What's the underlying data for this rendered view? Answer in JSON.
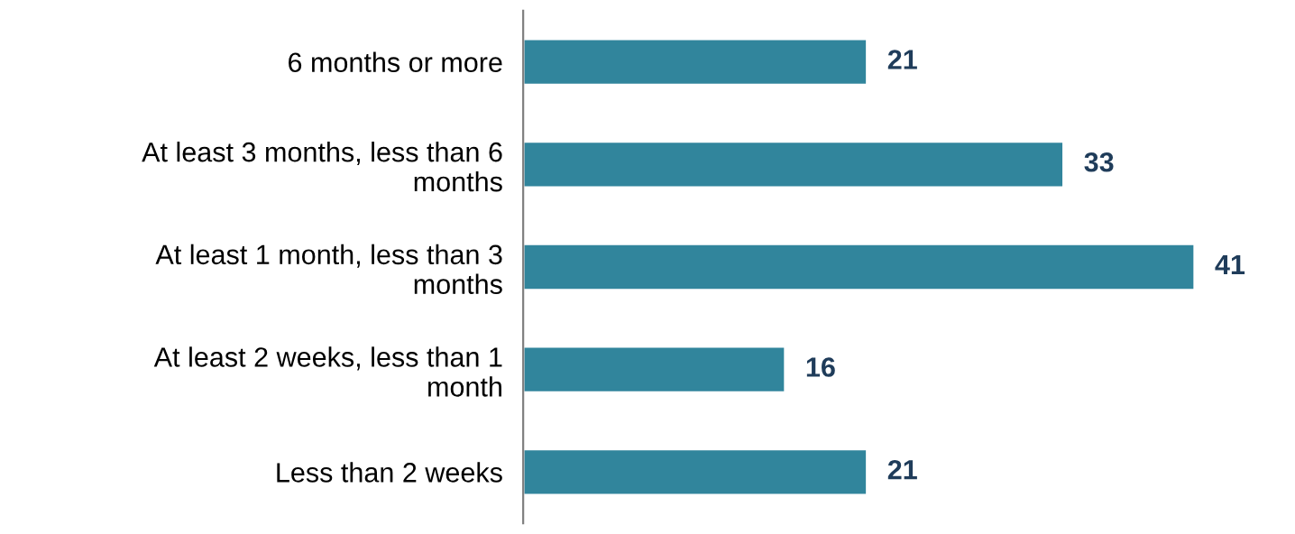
{
  "chart_data": {
    "type": "bar",
    "orientation": "horizontal",
    "categories": [
      "6 months or more",
      "At least 3 months, less than 6 months",
      "At least 1 month, less than 3 months",
      "At least 2 weeks, less than 1 month",
      "Less than 2 weeks"
    ],
    "values": [
      21,
      33,
      41,
      16,
      21
    ],
    "color": "#31859c",
    "data_labels": true,
    "grid": false,
    "legend": false
  }
}
